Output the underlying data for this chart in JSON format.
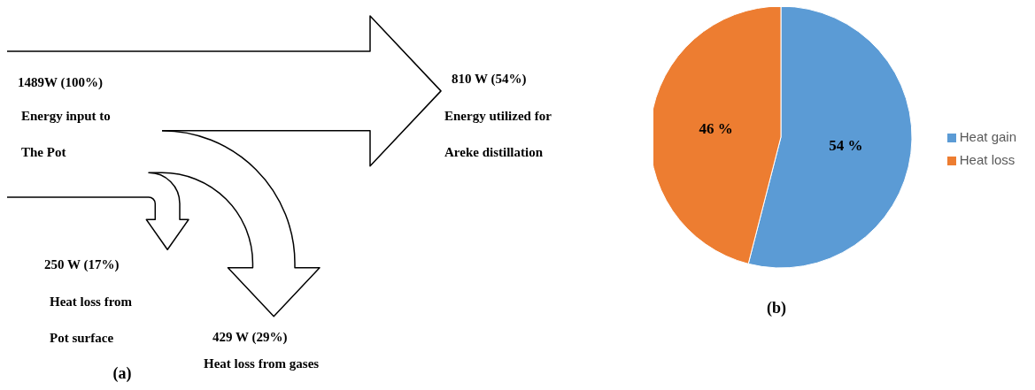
{
  "chart_data": [
    {
      "type": "other",
      "title": "(a)",
      "categories": [
        "Energy input to\nThe Pot",
        "Energy utilized for\nAreke distillation",
        "Heat loss from\nPot surface",
        "Heat loss from gases"
      ],
      "values": [
        1489,
        810,
        250,
        429
      ],
      "value_labels": [
        "1489W  (100%)",
        "810 W (54%)",
        "250 W (17%)",
        "429 W (29%)"
      ]
    },
    {
      "type": "pie",
      "title": "(b)",
      "categories": [
        "Heat gain",
        "Heat loss"
      ],
      "values": [
        54,
        46
      ],
      "colors": [
        "#5b9bd5",
        "#ed7d31"
      ],
      "value_labels": [
        "54 %",
        "46 %"
      ],
      "legend": "right"
    }
  ]
}
